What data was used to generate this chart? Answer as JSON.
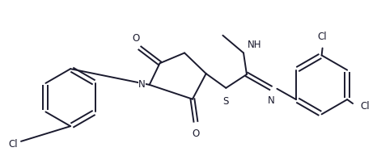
{
  "bg_color": "#ffffff",
  "line_color": "#1a1a2e",
  "line_width": 1.4,
  "font_size": 8.5,
  "figsize": [
    4.66,
    1.93
  ],
  "dpi": 100,
  "xlim": [
    0,
    4.66
  ],
  "ylim": [
    0,
    1.93
  ]
}
